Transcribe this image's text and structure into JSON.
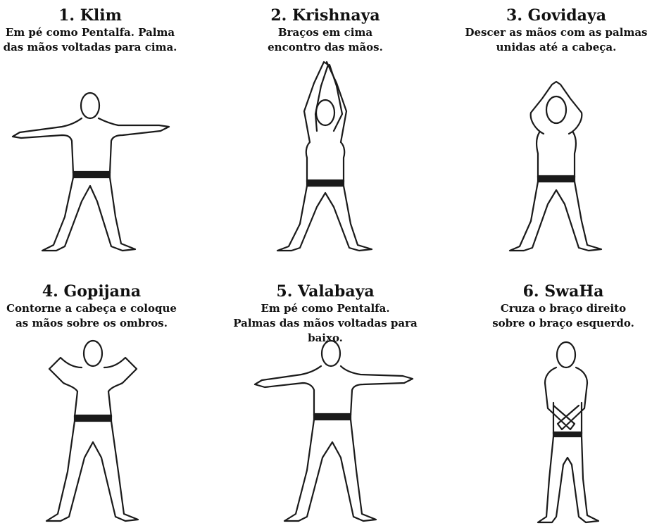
{
  "poses": [
    {
      "number": "1.",
      "name": "Klim",
      "title": "1. Klim",
      "description": [
        "Em pé como Pentalfa. Palma",
        "das mãos voltadas para cima."
      ],
      "figure": "arms-out-palms-up"
    },
    {
      "number": "2.",
      "name": "Krishnaya",
      "title": "2. Krishnaya",
      "description": [
        "Braços em cima",
        "encontro das mãos."
      ],
      "figure": "arms-up-hands-joined"
    },
    {
      "number": "3.",
      "name": "Govidaya",
      "title": "3. Govidaya",
      "description": [
        "Descer as mãos com as palmas",
        "unidas até a cabeça."
      ],
      "figure": "hands-joined-on-head"
    },
    {
      "number": "4.",
      "name": "Gopijana",
      "title": "4. Gopijana",
      "description": [
        "Contorne a cabeça e coloque",
        "as mãos sobre os ombros."
      ],
      "figure": "hands-on-shoulders"
    },
    {
      "number": "5.",
      "name": "Valabaya",
      "title": "5. Valabaya",
      "description": [
        "Em pé como Pentalfa.",
        "Palmas das mãos voltadas para baixo."
      ],
      "figure": "arms-out-palms-down"
    },
    {
      "number": "6.",
      "name": "SwaHa",
      "title": "6. SwaHa",
      "description": [
        "Cruza o braço direito",
        "sobre o braço esquerdo."
      ],
      "figure": "arms-crossed-down"
    }
  ]
}
